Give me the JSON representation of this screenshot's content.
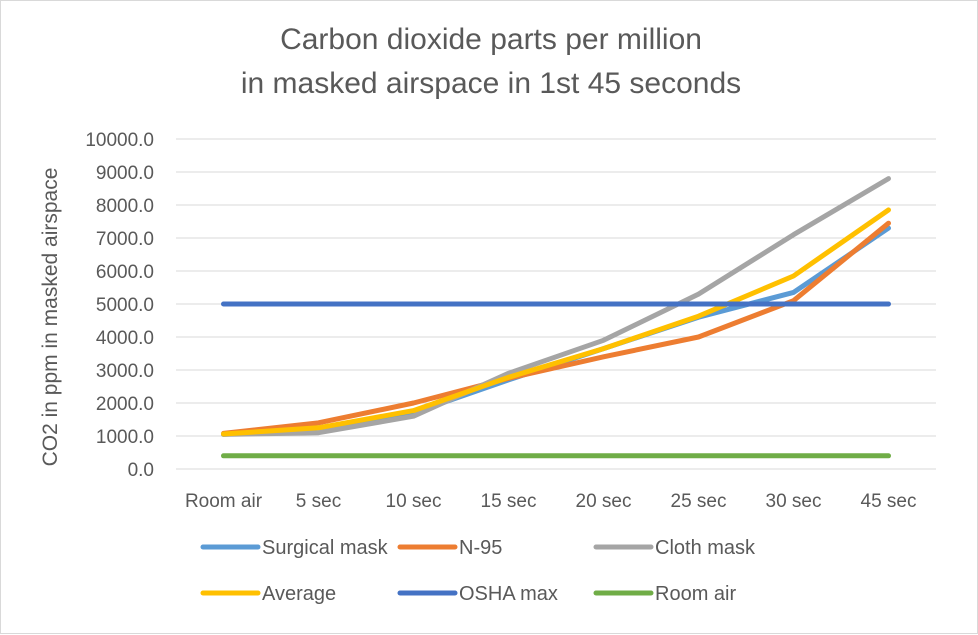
{
  "chart_data": {
    "type": "line",
    "title": [
      "Carbon dioxide parts per million",
      "in masked airspace in 1st 45 seconds"
    ],
    "xlabel": "",
    "ylabel": "CO2 in ppm in masked airspace",
    "categories": [
      "Room air",
      "5 sec",
      "10 sec",
      "15 sec",
      "20 sec",
      "25 sec",
      "30 sec",
      "45 sec"
    ],
    "yticks": [
      "0.0",
      "1000.0",
      "2000.0",
      "3000.0",
      "4000.0",
      "5000.0",
      "6000.0",
      "7000.0",
      "8000.0",
      "9000.0",
      "10000.0"
    ],
    "ylim": [
      0,
      10000
    ],
    "grid": true,
    "legend_position": "bottom",
    "series": [
      {
        "name": "Surgical mask",
        "color": "#5B9BD5",
        "values": [
          1050,
          1250,
          1700,
          2700,
          3650,
          4600,
          5350,
          7300
        ]
      },
      {
        "name": "N-95",
        "color": "#ED7D31",
        "values": [
          1080,
          1400,
          2000,
          2750,
          3400,
          4000,
          5100,
          7450
        ]
      },
      {
        "name": "Cloth mask",
        "color": "#A5A5A5",
        "values": [
          1050,
          1100,
          1600,
          2900,
          3900,
          5300,
          7100,
          8800
        ]
      },
      {
        "name": "Average",
        "color": "#FFC000",
        "values": [
          1060,
          1250,
          1770,
          2780,
          3650,
          4630,
          5850,
          7850
        ]
      },
      {
        "name": "OSHA max",
        "color": "#4472C4",
        "values": [
          5000,
          5000,
          5000,
          5000,
          5000,
          5000,
          5000,
          5000
        ]
      },
      {
        "name": "Room air",
        "color": "#70AD47",
        "values": [
          400,
          400,
          400,
          400,
          400,
          400,
          400,
          400
        ]
      }
    ]
  }
}
